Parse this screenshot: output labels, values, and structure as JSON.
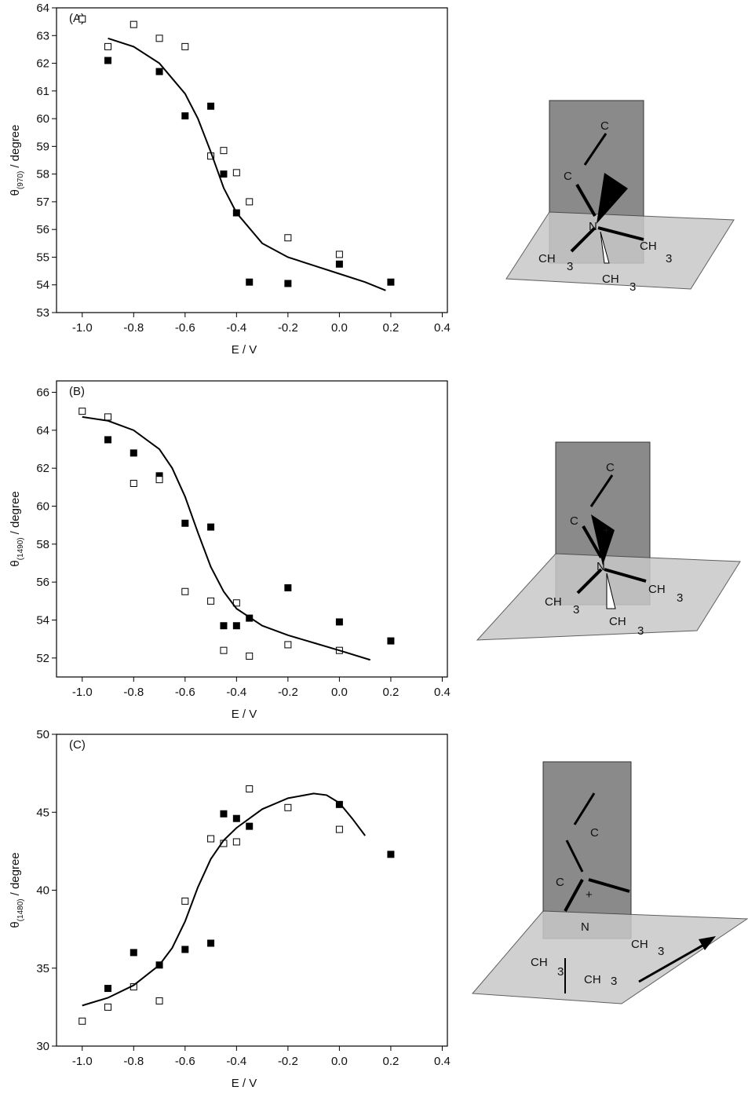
{
  "chart_data": [
    {
      "type": "scatter",
      "panel_label": "(A)",
      "x_label": "E / V",
      "y_label": {
        "symbol": "θ",
        "subscript": "(970)",
        "text": "/ degree"
      },
      "xlim": [
        -1.1,
        0.42
      ],
      "ylim": [
        53,
        64
      ],
      "xticks": [
        {
          "value": -1,
          "label": "-1.0"
        },
        -0.8,
        -0.6,
        -0.4,
        -0.2,
        {
          "value": 0,
          "label": "0.0"
        },
        0.2,
        0.4
      ],
      "yticks": [
        53,
        54,
        55,
        56,
        57,
        58,
        59,
        60,
        61,
        62,
        63,
        64
      ],
      "series": [
        {
          "type": "scatter",
          "color": "#000000",
          "fill": "#000000",
          "x": [
            -0.9,
            -0.7,
            -0.6,
            -0.5,
            -0.45,
            -0.4,
            -0.35,
            -0.2,
            0,
            0.2
          ],
          "values": [
            62.1,
            61.7,
            60.1,
            60.45,
            58.0,
            56.6,
            54.1,
            54.05,
            54.75,
            54.1
          ]
        },
        {
          "type": "scatter",
          "color": "#000000",
          "fill": "#ffffff",
          "x": [
            -1,
            -0.9,
            -0.8,
            -0.7,
            -0.6,
            -0.5,
            -0.45,
            -0.4,
            -0.35,
            -0.2,
            0
          ],
          "values": [
            63.6,
            62.6,
            63.4,
            62.9,
            62.6,
            58.65,
            58.85,
            58.05,
            57.0,
            55.7,
            55.1
          ]
        },
        {
          "type": "line",
          "color": "#000000",
          "x": [
            -0.9,
            -0.8,
            -0.7,
            -0.6,
            -0.55,
            -0.5,
            -0.45,
            -0.4,
            -0.3,
            -0.2,
            -0.1,
            0,
            0.1,
            0.18
          ],
          "values": [
            62.9,
            62.6,
            62.0,
            60.9,
            60.0,
            58.8,
            57.5,
            56.6,
            55.5,
            55.0,
            54.7,
            54.4,
            54.1,
            53.8
          ]
        }
      ]
    },
    {
      "type": "scatter",
      "panel_label": "(B)",
      "x_label": "E / V",
      "y_label": {
        "symbol": "θ",
        "subscript": "(1490)",
        "text": "/ degree"
      },
      "xlim": [
        -1.1,
        0.42
      ],
      "ylim": [
        51,
        66.6
      ],
      "xticks": [
        {
          "value": -1,
          "label": "-1.0"
        },
        -0.8,
        -0.6,
        -0.4,
        -0.2,
        {
          "value": 0,
          "label": "0.0"
        },
        0.2,
        0.4
      ],
      "yticks": [
        52,
        54,
        56,
        58,
        60,
        62,
        64,
        66
      ],
      "series": [
        {
          "type": "scatter",
          "color": "#000000",
          "fill": "#000000",
          "x": [
            -0.9,
            -0.8,
            -0.7,
            -0.6,
            -0.5,
            -0.45,
            -0.4,
            -0.35,
            -0.2,
            0,
            0.2
          ],
          "values": [
            63.5,
            62.8,
            61.6,
            59.1,
            58.9,
            53.7,
            53.7,
            54.1,
            55.7,
            53.9,
            52.9
          ]
        },
        {
          "type": "scatter",
          "color": "#000000",
          "fill": "#ffffff",
          "x": [
            -1,
            -0.9,
            -0.8,
            -0.7,
            -0.6,
            -0.5,
            -0.4,
            -0.45,
            -0.35,
            -0.2,
            0
          ],
          "values": [
            65.0,
            64.7,
            61.2,
            61.4,
            55.5,
            55.0,
            54.9,
            52.4,
            52.1,
            52.7,
            52.4
          ]
        },
        {
          "type": "line",
          "color": "#000000",
          "x": [
            -1,
            -0.9,
            -0.8,
            -0.7,
            -0.65,
            -0.6,
            -0.55,
            -0.5,
            -0.45,
            -0.4,
            -0.3,
            -0.2,
            -0.1,
            0,
            0.12
          ],
          "values": [
            64.7,
            64.5,
            64.0,
            63.0,
            62.0,
            60.5,
            58.6,
            56.8,
            55.5,
            54.6,
            53.7,
            53.2,
            52.8,
            52.4,
            51.9
          ]
        }
      ]
    },
    {
      "type": "scatter",
      "panel_label": "(C)",
      "x_label": "E / V",
      "y_label": {
        "symbol": "θ",
        "subscript": "(1480)",
        "text": "/ degree"
      },
      "xlim": [
        -1.1,
        0.42
      ],
      "ylim": [
        30,
        50
      ],
      "xticks": [
        {
          "value": -1,
          "label": "-1.0"
        },
        -0.8,
        -0.6,
        -0.4,
        -0.2,
        {
          "value": 0,
          "label": "0.0"
        },
        0.2,
        0.4
      ],
      "yticks": [
        30,
        35,
        40,
        45,
        50
      ],
      "series": [
        {
          "type": "scatter",
          "color": "#000000",
          "fill": "#000000",
          "x": [
            -0.9,
            -0.8,
            -0.7,
            -0.6,
            -0.5,
            -0.45,
            -0.4,
            -0.35,
            0,
            0.2
          ],
          "values": [
            33.7,
            36.0,
            35.2,
            36.2,
            36.6,
            44.9,
            44.6,
            44.1,
            45.5,
            42.3
          ]
        },
        {
          "type": "scatter",
          "color": "#000000",
          "fill": "#ffffff",
          "x": [
            -1,
            -0.9,
            -0.8,
            -0.7,
            -0.6,
            -0.5,
            -0.45,
            -0.4,
            -0.35,
            -0.2,
            0
          ],
          "values": [
            31.6,
            32.5,
            33.8,
            32.9,
            39.3,
            43.3,
            43.0,
            43.1,
            46.5,
            45.3,
            43.9
          ]
        },
        {
          "type": "line",
          "color": "#000000",
          "x": [
            -1,
            -0.9,
            -0.8,
            -0.7,
            -0.65,
            -0.6,
            -0.55,
            -0.5,
            -0.45,
            -0.4,
            -0.3,
            -0.2,
            -0.1,
            -0.05,
            0,
            0.05,
            0.1
          ],
          "values": [
            32.6,
            33.1,
            33.9,
            35.2,
            36.3,
            38.0,
            40.2,
            42.0,
            43.2,
            44.0,
            45.2,
            45.9,
            46.2,
            46.1,
            45.6,
            44.6,
            43.5
          ]
        }
      ]
    }
  ],
  "diagrams": [
    {
      "labels": [
        "C",
        "C",
        "N",
        "CH",
        "3",
        "CH",
        "3",
        "CH",
        "3"
      ]
    },
    {
      "labels": [
        "C",
        "C",
        "+",
        "N",
        "CH",
        "3",
        "CH",
        "3",
        "CH",
        "3"
      ]
    },
    {
      "labels": [
        "C",
        "C",
        "+",
        "N",
        "CH",
        "3",
        "CH",
        "3",
        "CH",
        "3"
      ]
    }
  ]
}
